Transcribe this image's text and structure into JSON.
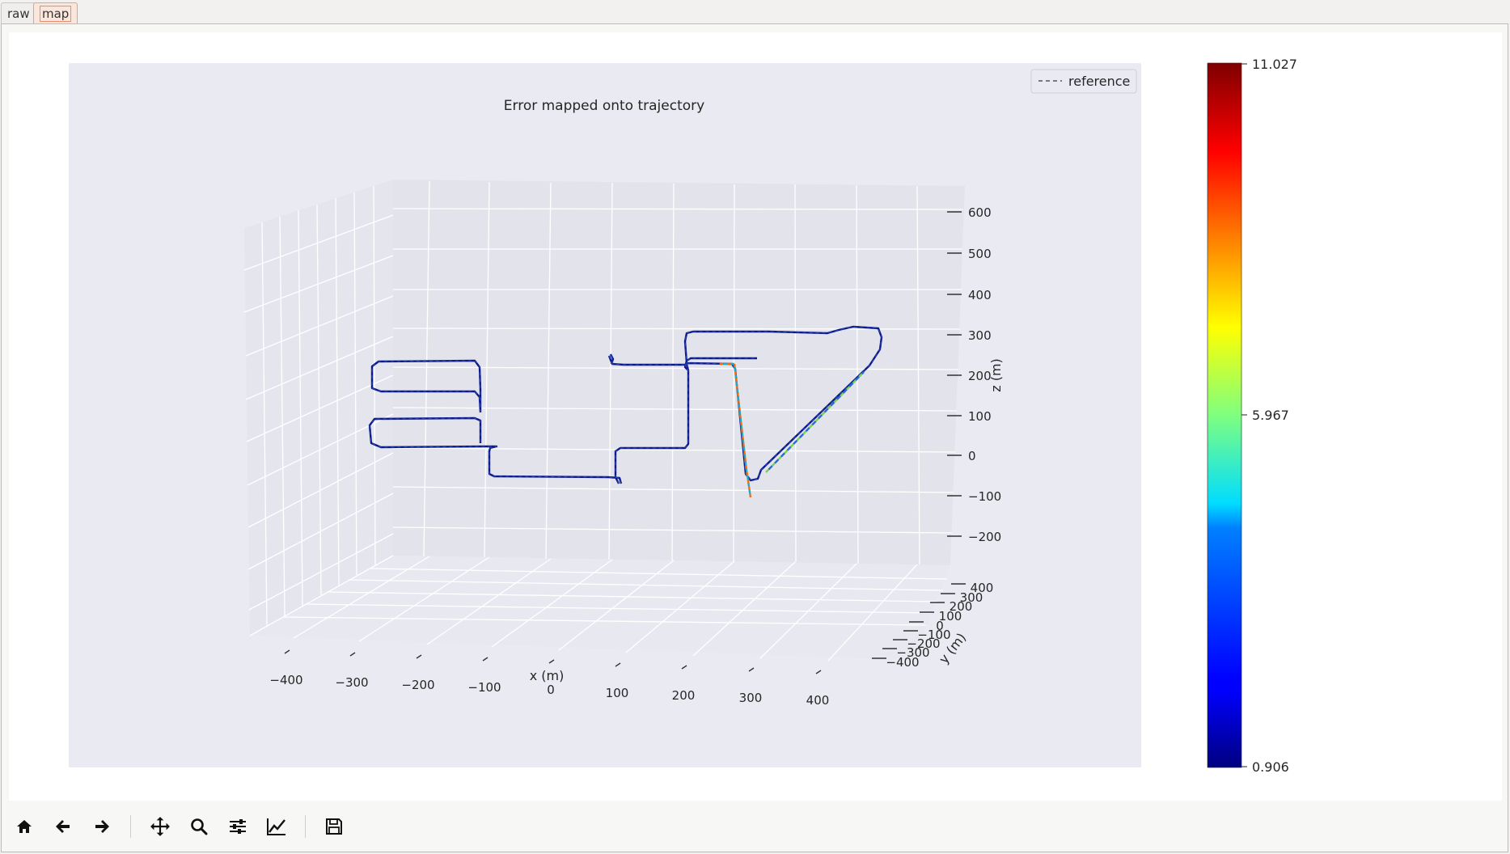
{
  "tabs": [
    {
      "label": "raw",
      "active": false
    },
    {
      "label": "map",
      "active": true
    }
  ],
  "chart_data": {
    "type": "line",
    "projection": "3d",
    "title": "Error mapped onto trajectory",
    "xlabel": "x (m)",
    "ylabel": "y (m)",
    "zlabel": "z (m)",
    "x_ticks": [
      "−400",
      "−300",
      "−200",
      "−100",
      "0",
      "100",
      "200",
      "300",
      "400"
    ],
    "y_ticks": [
      "−400",
      "−300",
      "−200",
      "−100",
      "0",
      "100",
      "200",
      "300",
      "400"
    ],
    "z_ticks": [
      "−200",
      "−100",
      "0",
      "100",
      "200",
      "300",
      "400",
      "500",
      "600"
    ],
    "legend": {
      "entries": [
        "reference"
      ],
      "position": "top-right",
      "style": "dashed"
    },
    "colorbar": {
      "colormap": "jet",
      "min": "0.906",
      "mid": "5.967",
      "max": "11.027"
    },
    "trajectory_color": "#0c1a8c",
    "reference_color": "#555555",
    "background": "#eaeaf2"
  },
  "toolbar": {
    "buttons": [
      {
        "name": "home-button",
        "icon": "home-icon"
      },
      {
        "name": "back-button",
        "icon": "arrow-left-icon"
      },
      {
        "name": "forward-button",
        "icon": "arrow-right-icon"
      },
      {
        "name": "pan-button",
        "icon": "move-icon"
      },
      {
        "name": "zoom-button",
        "icon": "magnifier-icon"
      },
      {
        "name": "configure-subplots-button",
        "icon": "sliders-icon"
      },
      {
        "name": "edit-axis-button",
        "icon": "line-chart-icon"
      },
      {
        "name": "save-button",
        "icon": "floppy-disk-icon"
      }
    ]
  }
}
